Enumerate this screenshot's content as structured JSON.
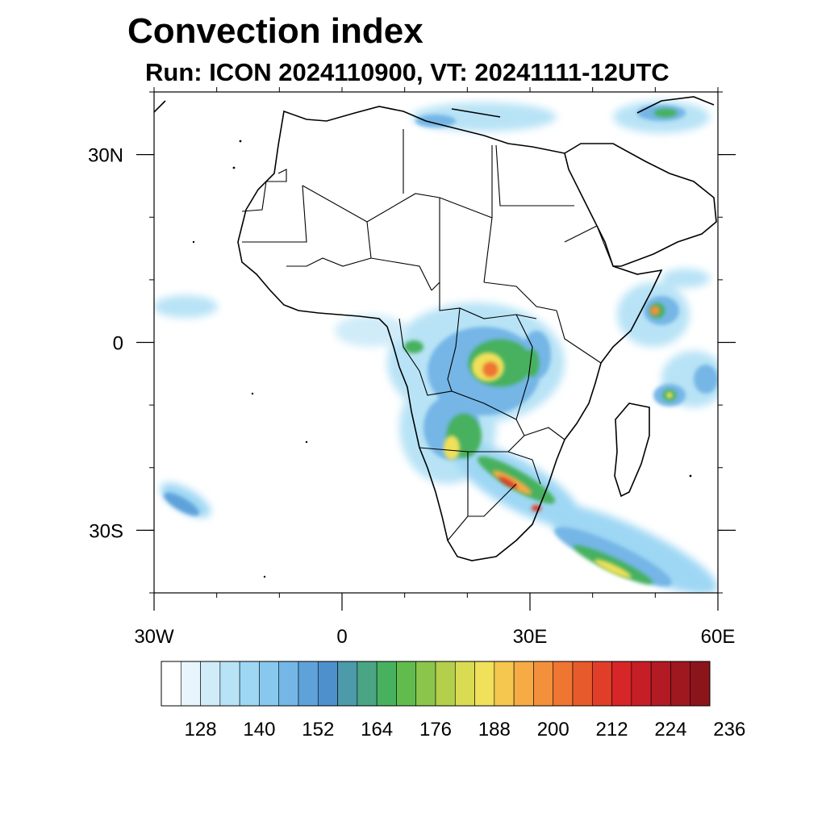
{
  "title": "Convection index",
  "subtitle": "Run: ICON 2024110900,  VT: 20241111-12UTC",
  "map": {
    "lon_range": [
      -30,
      60
    ],
    "lat_range": [
      -40,
      40
    ],
    "lat_ticks": [
      {
        "value": 30,
        "label": "30N"
      },
      {
        "value": 0,
        "label": "0"
      },
      {
        "value": -30,
        "label": "30S"
      }
    ],
    "lon_ticks": [
      {
        "value": -30,
        "label": "30W"
      },
      {
        "value": 0,
        "label": "0"
      },
      {
        "value": 30,
        "label": "30E"
      },
      {
        "value": 60,
        "label": "60E"
      }
    ]
  },
  "colorbar": {
    "colors": [
      "#ffffff",
      "#e8f5fc",
      "#d0ecf9",
      "#b8e3f6",
      "#9ed7f4",
      "#88c8ee",
      "#74b6e6",
      "#5fa2da",
      "#4d90cc",
      "#4c9aaa",
      "#4aa585",
      "#47b15f",
      "#62bc4d",
      "#8cc54c",
      "#b3cf4c",
      "#d9dc52",
      "#f0e05a",
      "#f6c74f",
      "#f6ab45",
      "#f3903c",
      "#ef7533",
      "#e75a2c",
      "#e03e29",
      "#d72628",
      "#c61e26",
      "#b21a24",
      "#9f1820",
      "#8c151b"
    ],
    "tick_labels": [
      "128",
      "140",
      "152",
      "164",
      "176",
      "188",
      "200",
      "212",
      "224",
      "236"
    ]
  }
}
